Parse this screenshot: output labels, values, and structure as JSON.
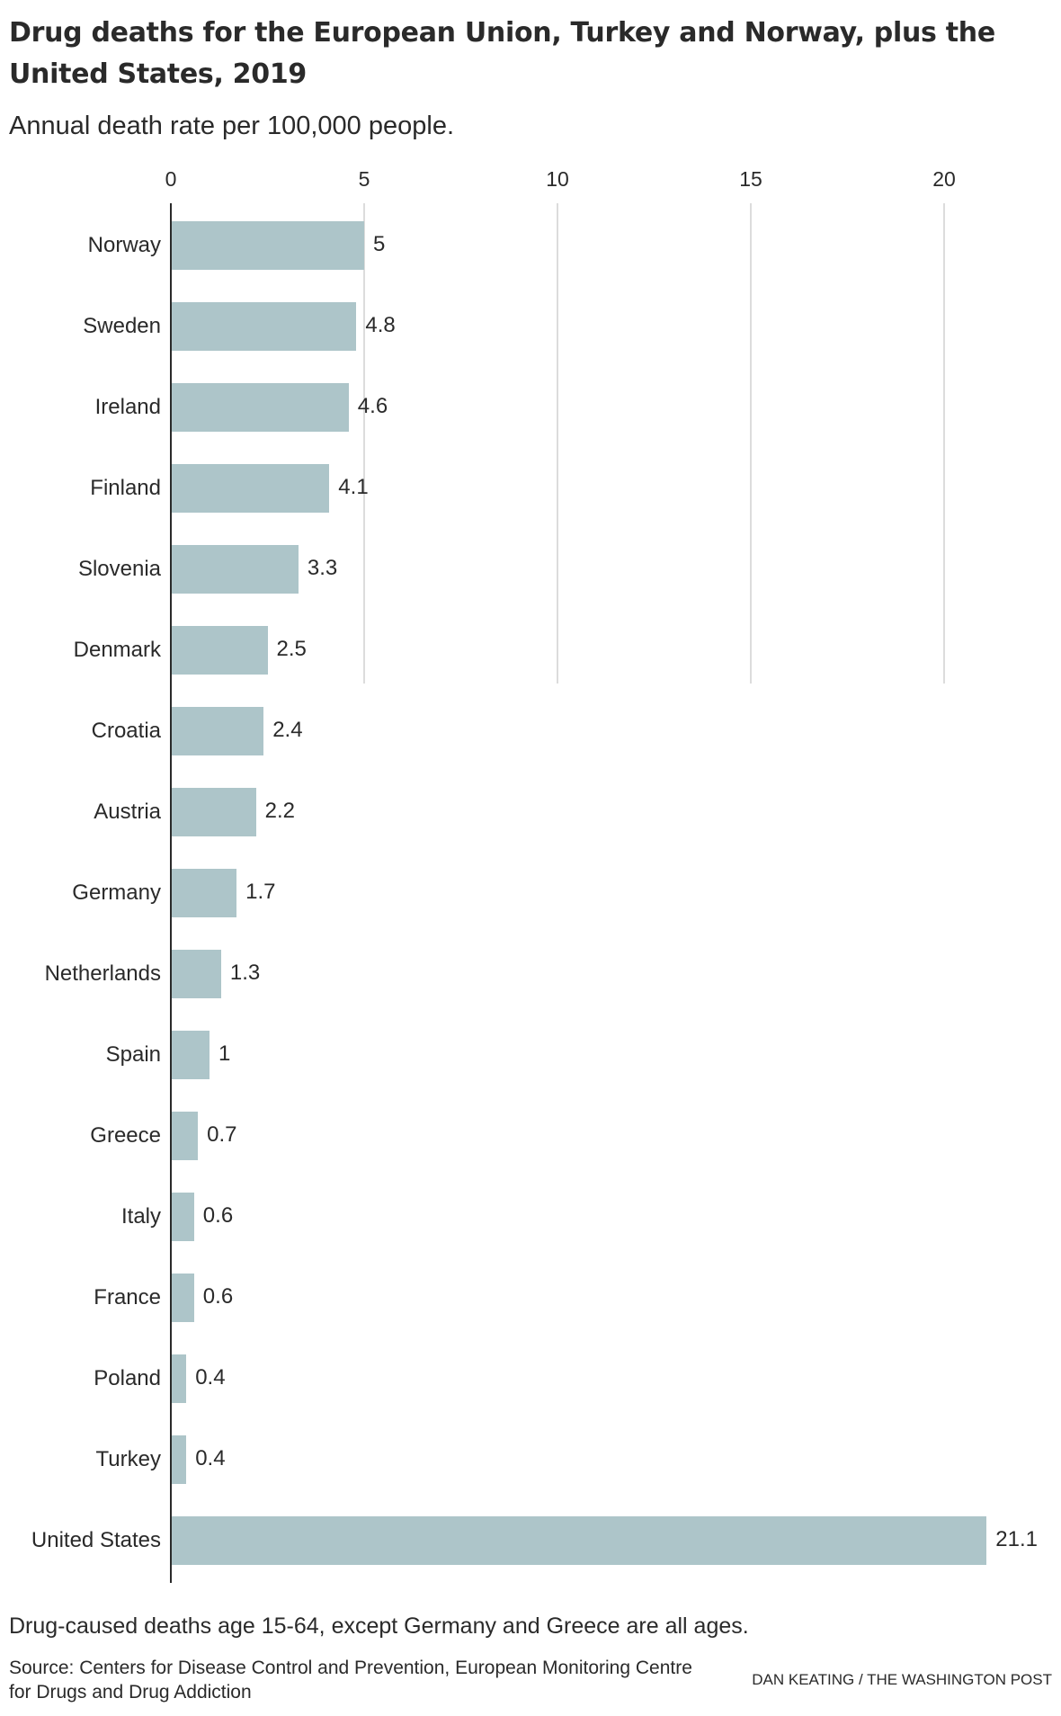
{
  "header": {
    "title": "Drug deaths for the European Union, Turkey and Norway, plus the United States, 2019",
    "subtitle": "Annual death rate per 100,000 people."
  },
  "footer": {
    "note": "Drug-caused deaths age 15-64, except Germany and Greece are all ages.",
    "source": "Source: Centers for Disease Control and Prevention, European Monitoring Centre for Drugs and Drug Addiction",
    "credit": "DAN KEATING / THE WASHINGTON POST"
  },
  "colors": {
    "bar": "#adc5c9",
    "text": "#2a2a2a",
    "grid": "#dcdcdc",
    "axis": "#2a2a2a"
  },
  "chart_data": {
    "type": "bar",
    "orientation": "horizontal",
    "title": "Drug deaths for the European Union, Turkey and Norway, plus the United States, 2019",
    "subtitle": "Annual death rate per 100,000 people.",
    "xlabel": "",
    "ylabel": "",
    "xlim": [
      0,
      22
    ],
    "xticks": [
      0,
      5,
      10,
      15,
      20
    ],
    "grid": true,
    "legend": null,
    "categories": [
      "Norway",
      "Sweden",
      "Ireland",
      "Finland",
      "Slovenia",
      "Denmark",
      "Croatia",
      "Austria",
      "Germany",
      "Netherlands",
      "Spain",
      "Greece",
      "Italy",
      "France",
      "Poland",
      "Turkey",
      "United States"
    ],
    "values": [
      5,
      4.8,
      4.6,
      4.1,
      3.3,
      2.5,
      2.4,
      2.2,
      1.7,
      1.3,
      1,
      0.7,
      0.6,
      0.6,
      0.4,
      0.4,
      21.1
    ],
    "value_labels": [
      "5",
      "4.8",
      "4.6",
      "4.1",
      "3.3",
      "2.5",
      "2.4",
      "2.2",
      "1.7",
      "1.3",
      "1",
      "0.7",
      "0.6",
      "0.6",
      "0.4",
      "0.4",
      "21.1"
    ],
    "annotations": [
      "Drug-caused deaths age 15-64, except Germany and Greece are all ages."
    ]
  }
}
